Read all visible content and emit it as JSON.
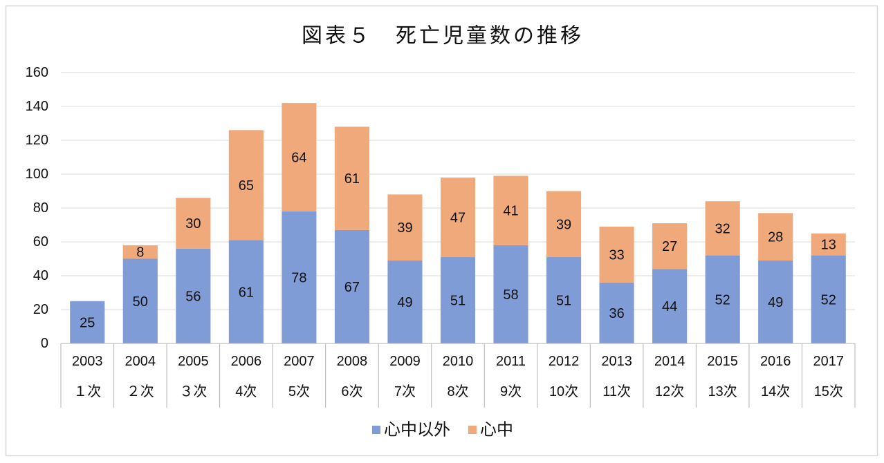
{
  "chart_data": {
    "type": "bar",
    "stacked": true,
    "title": "図表５　死亡児童数の推移",
    "categories": [
      "2003",
      "2004",
      "2005",
      "2006",
      "2007",
      "2008",
      "2009",
      "2010",
      "2011",
      "2012",
      "2013",
      "2014",
      "2015",
      "2016",
      "2017"
    ],
    "categories_level2": [
      "１次",
      "２次",
      "３次",
      "4次",
      "5次",
      "6次",
      "7次",
      "8次",
      "9次",
      "10次",
      "11次",
      "12次",
      "13次",
      "14次",
      "15次"
    ],
    "ylim": [
      0,
      160
    ],
    "yticks": [
      0,
      20,
      40,
      60,
      80,
      100,
      120,
      140,
      160
    ],
    "grid": true,
    "legend": "bottom",
    "series": [
      {
        "name": "心中以外",
        "color": "#7F9CD6",
        "values": [
          25,
          50,
          56,
          61,
          78,
          67,
          49,
          51,
          58,
          51,
          36,
          44,
          52,
          49,
          52
        ]
      },
      {
        "name": "心中",
        "color": "#F0A97B",
        "values": [
          null,
          8,
          30,
          65,
          64,
          61,
          39,
          47,
          41,
          39,
          33,
          27,
          32,
          28,
          13
        ]
      }
    ]
  }
}
